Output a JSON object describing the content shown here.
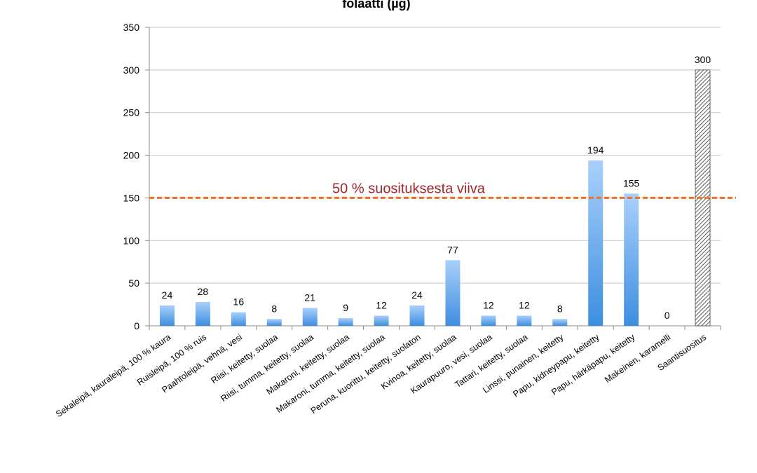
{
  "chart_data": {
    "type": "bar",
    "title": "folaatti (µg)",
    "xlabel": "",
    "ylabel": "",
    "ylim": [
      0,
      350
    ],
    "yticks": [
      0,
      50,
      100,
      150,
      200,
      250,
      300,
      350
    ],
    "grid": true,
    "legend": "none",
    "categories": [
      "Sekaleipä, kauraleipä, 100 % kaura",
      "Ruisleipä, 100 % ruis",
      "Paahtoleipä, vehnä, vesi",
      "Riisi, keitetty, suolaa",
      "Riisi, tumma, keitetty, suolaa",
      "Makaroni, keitetty, suolaa",
      "Makaroni, tumma, keitetty, suolaa",
      "Peruna, kuorittu, keitetty, suolaton",
      "Kvinoa, keitetty, suolaa",
      "Kaurapuuro, vesi, suolaa",
      "Tattari, keitetty, suolaa",
      "Linssi, punainen, keitetty",
      "Papu, kidneypapu, keitetty",
      "Papu, härkäpapu, keitetty",
      "Makeinen, karamelli",
      "Saantisuositus"
    ],
    "values": [
      24,
      28,
      16,
      8,
      21,
      9,
      12,
      24,
      77,
      12,
      12,
      8,
      194,
      155,
      0,
      300
    ],
    "data_labels": [
      "24",
      "28",
      "16",
      "8",
      "21",
      "9",
      "12",
      "24",
      "77",
      "12",
      "12",
      "8",
      "194",
      "155",
      "0",
      "300"
    ],
    "hatched_category": "Saantisuositus",
    "reference_line": {
      "value": 150,
      "label": "50 % suosituksesta viiva",
      "color": "#F26F21",
      "label_color": "#A6262E"
    },
    "colors": {
      "bar_top": "#A9D0FB",
      "bar_bottom": "#3D8EE0",
      "grid": "#C8C8C8",
      "axis": "#8C8C8C"
    }
  }
}
